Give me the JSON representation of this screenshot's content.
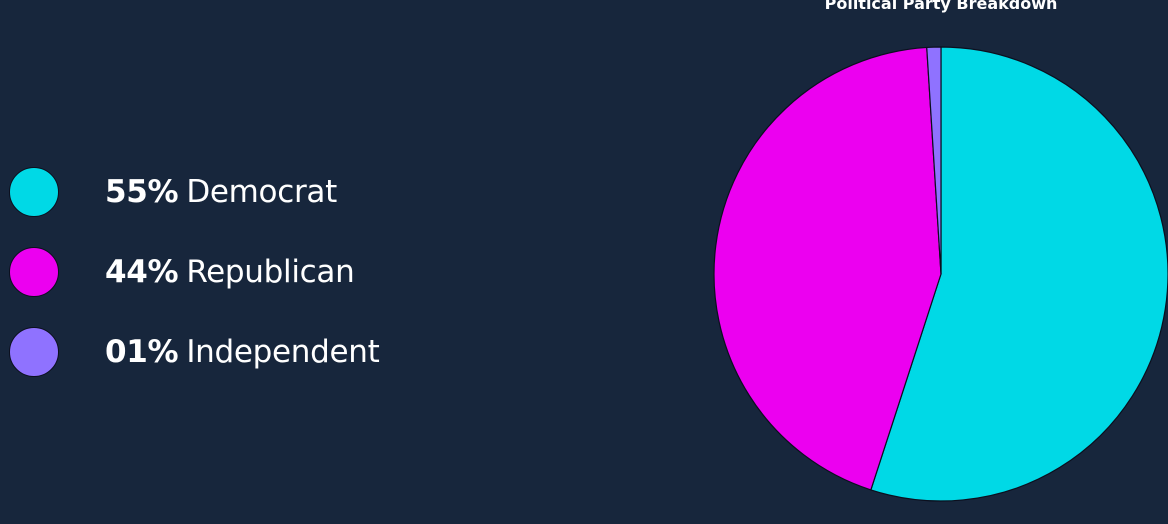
{
  "chart_data": {
    "type": "pie",
    "title": "Political Party Breakdown",
    "slices": [
      {
        "label": "Democrat",
        "display": "55%",
        "value": 55,
        "color": "#00d9e6"
      },
      {
        "label": "Republican",
        "display": "44%",
        "value": 44,
        "color": "#ec00f0"
      },
      {
        "label": "Independent",
        "display": "01%",
        "value": 1,
        "color": "#8f72ff"
      }
    ],
    "legend": "left"
  }
}
